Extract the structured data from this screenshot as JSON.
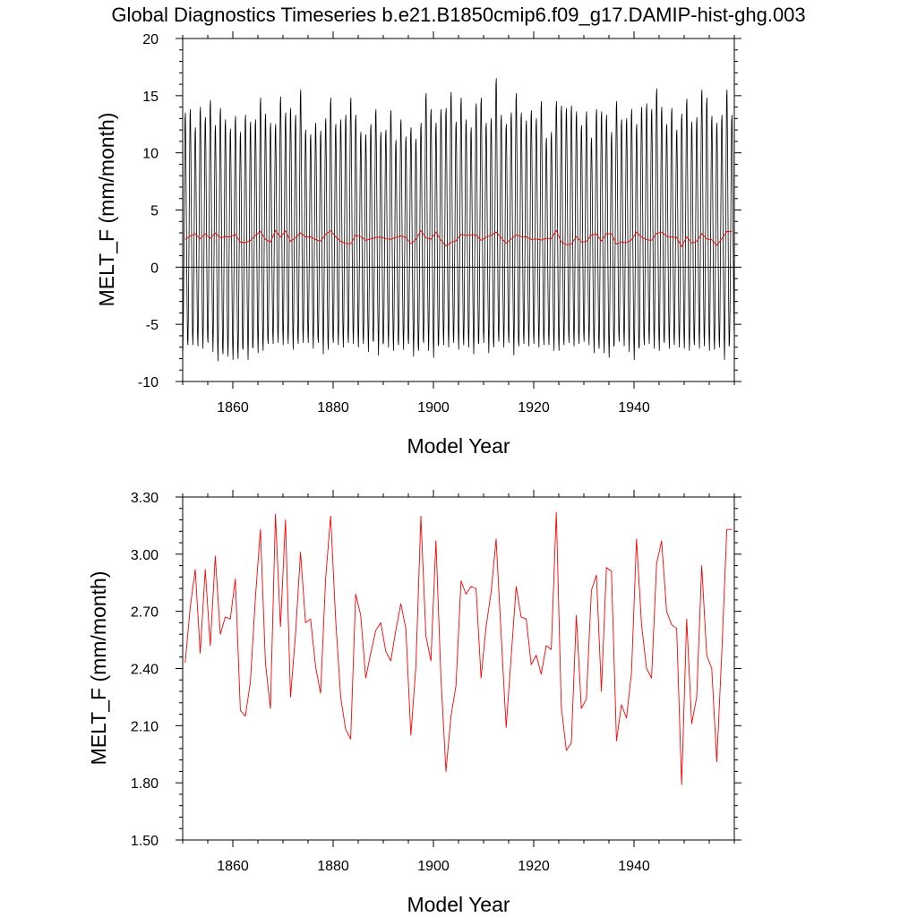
{
  "figure": {
    "title": "Global Diagnostics Timeseries b.e21.B1850cmip6.f09_g17.DAMIP-hist-ghg.003"
  },
  "colors": {
    "monthly_line": "#000000",
    "annual_line": "#ff0000",
    "axis": "#000000",
    "background": "#ffffff"
  },
  "chart_data": [
    {
      "type": "line",
      "title": "",
      "xlabel": "Model Year",
      "ylabel": "MELT_F (mm/month)",
      "xlim": [
        1850,
        1960
      ],
      "ylim": [
        -10,
        20
      ],
      "xticks": [
        1860,
        1880,
        1900,
        1920,
        1940
      ],
      "xtick_labels": [
        "1860",
        "1880",
        "1900",
        "1920",
        "1940"
      ],
      "yticks": [
        -10,
        -5,
        0,
        5,
        10,
        15,
        20
      ],
      "ytick_labels": [
        "-10",
        "-5",
        "0",
        "5",
        "10",
        "15",
        "20"
      ],
      "zero_line": true,
      "grid": false,
      "series": [
        {
          "name": "",
          "kind": "monthly",
          "color": "#000000",
          "start_year": 1850,
          "annual_max": [
            13.5,
            13.8,
            12.2,
            14.0,
            13.1,
            14.6,
            12.4,
            13.9,
            12.9,
            12.1,
            13.2,
            11.8,
            13.3,
            12.7,
            12.9,
            14.8,
            13.4,
            12.6,
            12.5,
            14.9,
            13.5,
            13.9,
            13.3,
            15.5,
            12.0,
            11.6,
            12.6,
            11.9,
            13.0,
            14.8,
            12.5,
            12.9,
            13.3,
            14.8,
            13.3,
            11.8,
            11.6,
            12.5,
            13.8,
            11.8,
            12.0,
            13.7,
            11.1,
            12.9,
            11.4,
            12.2,
            11.2,
            12.6,
            15.2,
            13.8,
            12.6,
            13.8,
            13.9,
            15.3,
            12.7,
            14.8,
            12.9,
            12.2,
            14.3,
            14.8,
            12.6,
            13.0,
            16.5,
            13.3,
            12.5,
            13.5,
            15.2,
            13.5,
            12.8,
            13.7,
            13.0,
            14.5,
            11.3,
            11.8,
            14.5,
            14.1,
            13.9,
            14.1,
            13.6,
            12.4,
            13.6,
            11.3,
            13.8,
            13.6,
            13.3,
            11.8,
            14.5,
            12.9,
            13.0,
            13.8,
            12.5,
            14.0,
            14.3,
            13.8,
            15.6,
            14.0,
            12.5,
            13.9,
            12.0,
            13.4,
            14.7,
            12.7,
            13.1,
            15.5,
            14.8,
            13.2,
            12.6,
            13.3,
            15.5,
            13.3
          ],
          "annual_min": [
            -7.3,
            -6.8,
            -6.8,
            -6.9,
            -7.1,
            -6.6,
            -7.4,
            -8.2,
            -7.6,
            -7.8,
            -8.1,
            -8.0,
            -7.2,
            -8.1,
            -7.0,
            -7.5,
            -7.3,
            -6.7,
            -6.7,
            -6.6,
            -6.8,
            -6.7,
            -7.2,
            -6.7,
            -6.6,
            -6.6,
            -7.1,
            -6.6,
            -7.6,
            -7.2,
            -6.6,
            -6.8,
            -7.0,
            -6.6,
            -6.7,
            -7.0,
            -6.7,
            -7.4,
            -6.5,
            -7.7,
            -6.6,
            -7.0,
            -7.3,
            -6.8,
            -7.2,
            -6.7,
            -7.8,
            -7.3,
            -6.6,
            -7.3,
            -7.9,
            -6.7,
            -6.8,
            -7.0,
            -6.6,
            -7.2,
            -6.8,
            -7.0,
            -7.6,
            -6.7,
            -6.6,
            -7.5,
            -7.0,
            -6.5,
            -7.0,
            -6.6,
            -7.7,
            -6.9,
            -6.7,
            -6.9,
            -6.7,
            -7.0,
            -6.8,
            -6.8,
            -7.3,
            -7.3,
            -6.8,
            -6.6,
            -6.9,
            -6.7,
            -6.5,
            -6.8,
            -7.5,
            -7.1,
            -7.5,
            -7.9,
            -6.8,
            -6.5,
            -6.9,
            -7.4,
            -8.1,
            -7.0,
            -6.8,
            -6.7,
            -7.1,
            -7.3,
            -6.6,
            -7.1,
            -6.8,
            -7.0,
            -7.1,
            -7.3,
            -6.8,
            -7.1,
            -6.9,
            -7.3,
            -7.2,
            -7.0,
            -8.1,
            -6.6
          ]
        },
        {
          "name": "",
          "kind": "annual",
          "color": "#ff0000",
          "x": [
            1850.5,
            1851.5,
            1852.5,
            1853.5,
            1854.5,
            1855.5,
            1856.5,
            1857.5,
            1858.5,
            1859.5,
            1860.5,
            1861.5,
            1862.5,
            1863.5,
            1864.5,
            1865.5,
            1866.5,
            1867.5,
            1868.5,
            1869.5,
            1870.5,
            1871.5,
            1872.5,
            1873.5,
            1874.5,
            1875.5,
            1876.5,
            1877.5,
            1878.5,
            1879.5,
            1880.5,
            1881.5,
            1882.5,
            1883.5,
            1884.5,
            1885.5,
            1886.5,
            1887.5,
            1888.5,
            1889.5,
            1890.5,
            1891.5,
            1892.5,
            1893.5,
            1894.5,
            1895.5,
            1896.5,
            1897.5,
            1898.5,
            1899.5,
            1900.5,
            1901.5,
            1902.5,
            1903.5,
            1904.5,
            1905.5,
            1906.5,
            1907.5,
            1908.5,
            1909.5,
            1910.5,
            1911.5,
            1912.5,
            1913.5,
            1914.5,
            1915.5,
            1916.5,
            1917.5,
            1918.5,
            1919.5,
            1920.5,
            1921.5,
            1922.5,
            1923.5,
            1924.5,
            1925.5,
            1926.5,
            1927.5,
            1928.5,
            1929.5,
            1930.5,
            1931.5,
            1932.5,
            1933.5,
            1934.5,
            1935.5,
            1936.5,
            1937.5,
            1938.5,
            1939.5,
            1940.5,
            1941.5,
            1942.5,
            1943.5,
            1944.5,
            1945.5,
            1946.5,
            1947.5,
            1948.5,
            1949.5,
            1950.5,
            1951.5,
            1952.5,
            1953.5,
            1954.5,
            1955.5,
            1956.5,
            1957.5,
            1958.5,
            1959.5
          ],
          "values": [
            2.43,
            2.72,
            2.92,
            2.48,
            2.92,
            2.52,
            2.99,
            2.58,
            2.67,
            2.66,
            2.87,
            2.18,
            2.15,
            2.33,
            2.77,
            3.13,
            2.43,
            2.19,
            3.21,
            2.62,
            3.18,
            2.25,
            2.58,
            3.01,
            2.64,
            2.66,
            2.41,
            2.27,
            2.87,
            3.2,
            2.66,
            2.25,
            2.08,
            2.03,
            2.79,
            2.68,
            2.35,
            2.48,
            2.6,
            2.64,
            2.49,
            2.44,
            2.6,
            2.74,
            2.61,
            2.05,
            2.41,
            3.2,
            2.57,
            2.44,
            3.07,
            2.35,
            1.86,
            2.15,
            2.31,
            2.86,
            2.79,
            2.83,
            2.82,
            2.35,
            2.62,
            2.8,
            3.08,
            2.58,
            2.09,
            2.46,
            2.83,
            2.67,
            2.66,
            2.42,
            2.47,
            2.37,
            2.52,
            2.5,
            3.22,
            2.2,
            1.97,
            2.01,
            2.68,
            2.19,
            2.24,
            2.81,
            2.89,
            2.28,
            2.93,
            2.91,
            2.02,
            2.21,
            2.14,
            2.38,
            3.08,
            2.63,
            2.4,
            2.35,
            2.95,
            3.07,
            2.7,
            2.63,
            2.61,
            1.79,
            2.66,
            2.11,
            2.25,
            2.94,
            2.47,
            2.4,
            1.91,
            2.48,
            3.13,
            3.13
          ]
        }
      ]
    },
    {
      "type": "line",
      "title": "",
      "xlabel": "Model Year",
      "ylabel": "MELT_F (mm/month)",
      "xlim": [
        1850,
        1960
      ],
      "ylim": [
        1.5,
        3.3
      ],
      "xticks": [
        1860,
        1880,
        1900,
        1920,
        1940
      ],
      "xtick_labels": [
        "1860",
        "1880",
        "1900",
        "1920",
        "1940"
      ],
      "yticks": [
        1.5,
        1.8,
        2.1,
        2.4,
        2.7,
        3.0,
        3.3
      ],
      "ytick_labels": [
        "1.50",
        "1.80",
        "2.10",
        "2.40",
        "2.70",
        "3.00",
        "3.30"
      ],
      "zero_line": false,
      "grid": false,
      "series": [
        {
          "name": "",
          "kind": "annual",
          "color": "#ff0000",
          "x": [
            1850.5,
            1851.5,
            1852.5,
            1853.5,
            1854.5,
            1855.5,
            1856.5,
            1857.5,
            1858.5,
            1859.5,
            1860.5,
            1861.5,
            1862.5,
            1863.5,
            1864.5,
            1865.5,
            1866.5,
            1867.5,
            1868.5,
            1869.5,
            1870.5,
            1871.5,
            1872.5,
            1873.5,
            1874.5,
            1875.5,
            1876.5,
            1877.5,
            1878.5,
            1879.5,
            1880.5,
            1881.5,
            1882.5,
            1883.5,
            1884.5,
            1885.5,
            1886.5,
            1887.5,
            1888.5,
            1889.5,
            1890.5,
            1891.5,
            1892.5,
            1893.5,
            1894.5,
            1895.5,
            1896.5,
            1897.5,
            1898.5,
            1899.5,
            1900.5,
            1901.5,
            1902.5,
            1903.5,
            1904.5,
            1905.5,
            1906.5,
            1907.5,
            1908.5,
            1909.5,
            1910.5,
            1911.5,
            1912.5,
            1913.5,
            1914.5,
            1915.5,
            1916.5,
            1917.5,
            1918.5,
            1919.5,
            1920.5,
            1921.5,
            1922.5,
            1923.5,
            1924.5,
            1925.5,
            1926.5,
            1927.5,
            1928.5,
            1929.5,
            1930.5,
            1931.5,
            1932.5,
            1933.5,
            1934.5,
            1935.5,
            1936.5,
            1937.5,
            1938.5,
            1939.5,
            1940.5,
            1941.5,
            1942.5,
            1943.5,
            1944.5,
            1945.5,
            1946.5,
            1947.5,
            1948.5,
            1949.5,
            1950.5,
            1951.5,
            1952.5,
            1953.5,
            1954.5,
            1955.5,
            1956.5,
            1957.5,
            1958.5,
            1959.5
          ],
          "values": [
            2.43,
            2.72,
            2.92,
            2.48,
            2.92,
            2.52,
            2.99,
            2.58,
            2.67,
            2.66,
            2.87,
            2.18,
            2.15,
            2.33,
            2.77,
            3.13,
            2.43,
            2.19,
            3.21,
            2.62,
            3.18,
            2.25,
            2.58,
            3.01,
            2.64,
            2.66,
            2.41,
            2.27,
            2.87,
            3.2,
            2.66,
            2.25,
            2.08,
            2.03,
            2.79,
            2.68,
            2.35,
            2.48,
            2.6,
            2.64,
            2.49,
            2.44,
            2.6,
            2.74,
            2.61,
            2.05,
            2.41,
            3.2,
            2.57,
            2.44,
            3.07,
            2.35,
            1.86,
            2.15,
            2.31,
            2.86,
            2.79,
            2.83,
            2.82,
            2.35,
            2.62,
            2.8,
            3.08,
            2.58,
            2.09,
            2.46,
            2.83,
            2.67,
            2.66,
            2.42,
            2.47,
            2.37,
            2.52,
            2.5,
            3.22,
            2.2,
            1.97,
            2.01,
            2.68,
            2.19,
            2.24,
            2.81,
            2.89,
            2.28,
            2.93,
            2.91,
            2.02,
            2.21,
            2.14,
            2.38,
            3.08,
            2.63,
            2.4,
            2.35,
            2.95,
            3.07,
            2.7,
            2.63,
            2.61,
            1.79,
            2.66,
            2.11,
            2.25,
            2.94,
            2.47,
            2.4,
            1.91,
            2.48,
            3.13,
            3.13
          ]
        }
      ]
    }
  ]
}
